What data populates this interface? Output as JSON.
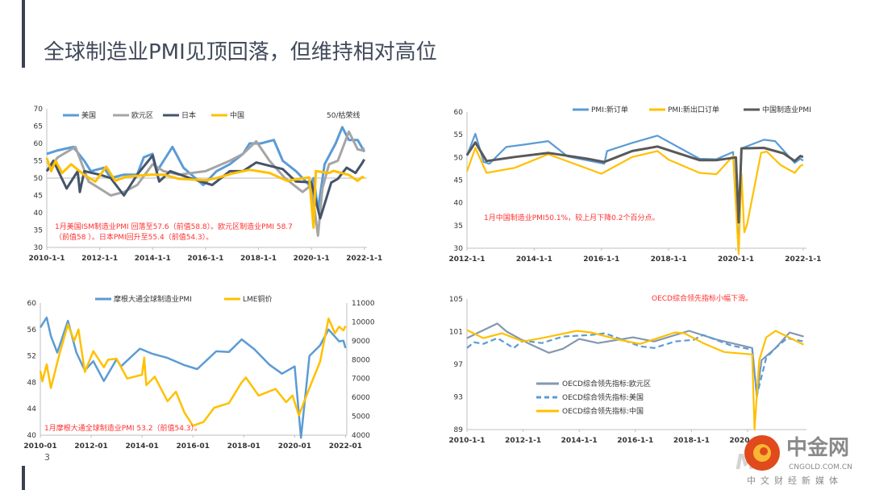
{
  "slide": {
    "title": "全球制造业PMI见顶回落，但维持相对高位",
    "page_number": "3",
    "accent_bar_color": "#3b4152"
  },
  "watermark": {
    "name": "中金网",
    "domain": "CNGOLD.COM.CN",
    "slogan": "中文财经新媒体"
  },
  "chart_data": [
    {
      "type": "line",
      "ylim": [
        30,
        70
      ],
      "yticks": [
        30,
        35,
        40,
        45,
        50,
        55,
        60,
        65,
        70
      ],
      "xticks": [
        "2010-1-1",
        "2012-1-1",
        "2014-1-1",
        "2016-1-1",
        "2018-1-1",
        "2020-1-1",
        "2022-1-1"
      ],
      "reference_line": {
        "value": 50,
        "label": "50/枯荣线"
      },
      "legend_position": "top",
      "annotation": [
        "1月美国ISM制造业PMI 回落至57.6（前值58.8）。欧元区制造业PMI 58.7",
        "（前值58 ）。日本PMI回升至55.4（前值54.3）。"
      ],
      "series": [
        {
          "name": "美国",
          "color": "#5b9bd5",
          "x": [
            "2010-01",
            "2010-06",
            "2011-01",
            "2011-06",
            "2011-09",
            "2012-03",
            "2012-06",
            "2012-12",
            "2013-06",
            "2013-09",
            "2014-01",
            "2014-03",
            "2014-06",
            "2014-10",
            "2015-03",
            "2015-12",
            "2016-06",
            "2016-12",
            "2017-06",
            "2017-09",
            "2018-02",
            "2018-08",
            "2018-12",
            "2019-06",
            "2019-12",
            "2020-02",
            "2020-04",
            "2020-07",
            "2020-12",
            "2021-03",
            "2021-06",
            "2021-10",
            "2021-12",
            "2022-01"
          ],
          "y": [
            57,
            58,
            59,
            55,
            52,
            53,
            50,
            51,
            51,
            56,
            57,
            52,
            55,
            59,
            53,
            48,
            52,
            54,
            57,
            60,
            60,
            61,
            55,
            52,
            48,
            50,
            41,
            54,
            60,
            64.7,
            61,
            61,
            58.8,
            57.6
          ]
        },
        {
          "name": "欧元区",
          "color": "#a5a5a5",
          "x": [
            "2010-01",
            "2010-06",
            "2011-02",
            "2011-08",
            "2012-06",
            "2012-12",
            "2013-06",
            "2014-01",
            "2014-06",
            "2015-01",
            "2016-01",
            "2016-12",
            "2017-06",
            "2017-12",
            "2018-06",
            "2019-01",
            "2019-09",
            "2020-01",
            "2020-04",
            "2020-06",
            "2020-09",
            "2021-01",
            "2021-06",
            "2021-10",
            "2021-12",
            "2022-01"
          ],
          "y": [
            52,
            56,
            59,
            49,
            45,
            46,
            48,
            54,
            52,
            51,
            52,
            55,
            57,
            60.6,
            55,
            50,
            46,
            48,
            33.4,
            47,
            54,
            55,
            63.4,
            58.3,
            58,
            58.7
          ]
        },
        {
          "name": "日本",
          "color": "#44546a",
          "x": [
            "2010-01",
            "2010-04",
            "2010-10",
            "2011-03",
            "2011-04",
            "2011-06",
            "2012-01",
            "2012-06",
            "2012-12",
            "2013-06",
            "2014-01",
            "2014-04",
            "2014-09",
            "2015-06",
            "2016-04",
            "2016-12",
            "2017-06",
            "2017-12",
            "2018-12",
            "2019-06",
            "2020-01",
            "2020-05",
            "2020-10",
            "2021-01",
            "2021-05",
            "2021-09",
            "2021-12",
            "2022-01"
          ],
          "y": [
            52,
            55,
            47,
            52,
            46,
            52,
            51,
            50,
            45,
            51,
            56.5,
            49,
            52,
            50,
            48,
            52,
            52,
            54.5,
            52.6,
            49,
            48.8,
            38.4,
            48.7,
            49.8,
            53,
            51.5,
            54.3,
            55.4
          ]
        },
        {
          "name": "中国",
          "color": "#ffc000",
          "x": [
            "2010-01",
            "2010-03",
            "2010-05",
            "2010-08",
            "2010-12",
            "2011-06",
            "2011-11",
            "2012-04",
            "2012-08",
            "2013-01",
            "2013-12",
            "2014-06",
            "2015-01",
            "2016-01",
            "2016-06",
            "2017-01",
            "2017-09",
            "2018-06",
            "2019-02",
            "2019-12",
            "2020-02",
            "2020-03",
            "2020-09",
            "2020-11",
            "2021-06",
            "2021-10",
            "2021-12",
            "2022-01"
          ],
          "y": [
            55.8,
            52,
            55,
            51.5,
            54,
            50.9,
            49,
            53.3,
            49.2,
            50.4,
            51,
            51,
            49.8,
            49.4,
            50,
            51.3,
            52.4,
            51.5,
            49.2,
            50.2,
            35.7,
            52,
            51.5,
            52.1,
            50.9,
            49.2,
            50.3,
            50.1
          ]
        }
      ]
    },
    {
      "type": "line",
      "ylim": [
        30,
        60
      ],
      "yticks": [
        30,
        35,
        40,
        45,
        50,
        55,
        60
      ],
      "xticks": [
        "2012-1-1",
        "2014-1-1",
        "2016-1-1",
        "2018-1-1",
        "2020-1-1",
        "2022-1-1"
      ],
      "legend_position": "top",
      "annotation": [
        "1月中国制造业PMI50.1%，较上月下降0.2个百分点。"
      ],
      "series": [
        {
          "name": "PMI:新订单",
          "color": "#5b9bd5",
          "x": [
            "2012-01",
            "2012-04",
            "2012-07",
            "2012-09",
            "2013-03",
            "2013-09",
            "2014-06",
            "2015-01",
            "2016-02",
            "2016-03",
            "2016-12",
            "2017-09",
            "2018-12",
            "2019-06",
            "2019-12",
            "2020-02",
            "2020-03",
            "2020-11",
            "2021-03",
            "2021-10",
            "2021-12",
            "2022-01"
          ],
          "y": [
            50.4,
            55.2,
            49,
            48.6,
            52.3,
            52.8,
            53.6,
            50.2,
            48.6,
            51.4,
            53.2,
            54.8,
            49.7,
            49.6,
            51.2,
            29.3,
            52,
            53.9,
            53.6,
            48.8,
            49.7,
            49.3
          ]
        },
        {
          "name": "PMI:新出口订单",
          "color": "#ffc000",
          "x": [
            "2012-01",
            "2012-04",
            "2012-08",
            "2013-06",
            "2014-06",
            "2015-06",
            "2016-01",
            "2016-12",
            "2017-09",
            "2018-01",
            "2018-12",
            "2019-06",
            "2019-12",
            "2020-02",
            "2020-03",
            "2020-04",
            "2020-05",
            "2020-10",
            "2020-12",
            "2021-05",
            "2021-10",
            "2021-12",
            "2022-01"
          ],
          "y": [
            46.9,
            52.1,
            46.6,
            47.7,
            50.7,
            48,
            46.4,
            50.1,
            51.4,
            49.5,
            46.6,
            46.3,
            50.3,
            28.7,
            46.4,
            33.5,
            35.3,
            51,
            51.3,
            48.3,
            46.6,
            48.1,
            48.4
          ]
        },
        {
          "name": "中国制造业PMI",
          "color": "#595959",
          "x": [
            "2012-01",
            "2012-04",
            "2012-08",
            "2013-06",
            "2014-06",
            "2015-08",
            "2016-02",
            "2016-12",
            "2017-09",
            "2018-12",
            "2019-06",
            "2020-01",
            "2020-02",
            "2020-03",
            "2020-11",
            "2021-06",
            "2021-10",
            "2021-12",
            "2022-01"
          ],
          "y": [
            50.5,
            53.3,
            49.2,
            50.1,
            51,
            49.7,
            49,
            51.4,
            52.4,
            49.4,
            49.4,
            50,
            35.7,
            52,
            52.1,
            50.9,
            49.2,
            50.3,
            50.1
          ]
        }
      ]
    },
    {
      "type": "line",
      "ylim": [
        40,
        60
      ],
      "yticks": [
        40,
        44,
        48,
        52,
        56,
        60
      ],
      "y2lim": [
        4000,
        11000
      ],
      "y2ticks": [
        4000,
        5000,
        6000,
        7000,
        8000,
        9000,
        10000,
        11000
      ],
      "xticks": [
        "2010-01",
        "2012-01",
        "2014-01",
        "2016-01",
        "2018-01",
        "2020-01",
        "2022-01"
      ],
      "legend_position": "top",
      "annotation": [
        "1月摩根大通全球制造业PMI 53.2（前值54.3）。"
      ],
      "series": [
        {
          "name": "摩根大通全球制造业PMI",
          "axis": "left",
          "color": "#5b9bd5",
          "x": [
            "2010-01",
            "2010-04",
            "2010-06",
            "2010-09",
            "2011-02",
            "2011-06",
            "2011-10",
            "2012-02",
            "2012-07",
            "2013-01",
            "2013-03",
            "2013-12",
            "2014-06",
            "2015-01",
            "2015-09",
            "2016-03",
            "2016-12",
            "2017-06",
            "2017-12",
            "2018-06",
            "2019-01",
            "2019-07",
            "2020-01",
            "2020-04",
            "2020-08",
            "2021-01",
            "2021-05",
            "2021-10",
            "2021-12",
            "2022-01"
          ],
          "y": [
            56.3,
            57.8,
            55,
            52.5,
            57.3,
            52.5,
            49.8,
            51.2,
            48.2,
            51.5,
            50.4,
            53.1,
            52.3,
            51.7,
            50.6,
            50,
            52.7,
            52.6,
            54.5,
            53,
            50.7,
            49.3,
            50.4,
            39.6,
            52,
            53.6,
            56,
            54.2,
            54.3,
            53.2
          ]
        },
        {
          "name": "LME铜价",
          "axis": "right",
          "color": "#ffc000",
          "x": [
            "2010-01",
            "2010-02",
            "2010-04",
            "2010-06",
            "2010-10",
            "2011-02",
            "2011-05",
            "2011-07",
            "2011-10",
            "2012-02",
            "2012-07",
            "2012-09",
            "2013-01",
            "2013-06",
            "2014-01",
            "2014-02",
            "2014-03",
            "2014-07",
            "2015-01",
            "2015-05",
            "2015-09",
            "2016-01",
            "2016-06",
            "2016-11",
            "2017-06",
            "2017-12",
            "2018-02",
            "2018-08",
            "2019-04",
            "2019-09",
            "2019-12",
            "2020-03",
            "2020-08",
            "2021-01",
            "2021-05",
            "2021-08",
            "2021-10",
            "2021-12",
            "2022-01"
          ],
          "y": [
            7400,
            6850,
            7750,
            6500,
            8300,
            9870,
            9000,
            9600,
            7350,
            8450,
            7600,
            8000,
            8050,
            7000,
            7200,
            8100,
            6650,
            7100,
            5800,
            6300,
            5200,
            4500,
            4700,
            5450,
            5700,
            6800,
            7050,
            6100,
            6450,
            5750,
            6100,
            5050,
            6500,
            7900,
            10180,
            9400,
            9750,
            9550,
            9780
          ]
        }
      ]
    },
    {
      "type": "line",
      "ylim": [
        89,
        105
      ],
      "yticks": [
        89,
        93,
        97,
        101,
        105
      ],
      "xticks": [
        "2010-1-1",
        "2012-1-1",
        "2014-1-1",
        "2016-1-1",
        "2018-1-1",
        "2020-1-1"
      ],
      "legend_position": "bottom-left",
      "annotation": [
        "OECD综合领先指标小幅下滑。"
      ],
      "series": [
        {
          "name": "OECD综合领先指标:欧元区",
          "color": "#8497b0",
          "dash": false,
          "x": [
            "2010-01",
            "2010-06",
            "2011-02",
            "2011-06",
            "2012-03",
            "2012-12",
            "2013-06",
            "2014-01",
            "2014-09",
            "2015-12",
            "2016-09",
            "2017-12",
            "2018-12",
            "2019-12",
            "2020-03",
            "2020-05",
            "2020-07",
            "2021-01",
            "2021-07",
            "2022-01"
          ],
          "y": [
            100.2,
            100.9,
            102,
            101,
            99.6,
            98.4,
            98.9,
            100.1,
            99.6,
            100.3,
            99.8,
            101.1,
            100,
            99.2,
            99,
            93,
            97.5,
            99,
            100.9,
            100.4
          ]
        },
        {
          "name": "OECD综合领先指标:美国",
          "color": "#5b9bd5",
          "dash": true,
          "x": [
            "2010-01",
            "2010-04",
            "2010-08",
            "2011-02",
            "2011-09",
            "2012-01",
            "2012-09",
            "2013-06",
            "2014-06",
            "2014-12",
            "2016-03",
            "2016-09",
            "2017-06",
            "2018-02",
            "2018-06",
            "2019-06",
            "2020-03",
            "2020-05",
            "2020-09",
            "2021-01",
            "2021-06",
            "2022-01"
          ],
          "y": [
            99,
            99.7,
            99.5,
            100.2,
            99,
            99.9,
            99.6,
            100.4,
            100.6,
            100.8,
            99.2,
            99,
            99.8,
            100,
            100.6,
            99.3,
            98.8,
            93.2,
            97.8,
            99,
            100.2,
            99.8
          ]
        },
        {
          "name": "OECD综合领先指标:中国",
          "color": "#ffc000",
          "dash": false,
          "x": [
            "2010-01",
            "2010-08",
            "2011-04",
            "2012-01",
            "2012-09",
            "2013-12",
            "2014-06",
            "2015-06",
            "2016-03",
            "2017-06",
            "2017-10",
            "2018-06",
            "2019-03",
            "2020-03",
            "2020-04",
            "2020-06",
            "2020-09",
            "2021-01",
            "2021-06",
            "2022-01"
          ],
          "y": [
            101.2,
            100.2,
            100.8,
            99.8,
            100.2,
            101.1,
            100.9,
            100,
            99.5,
            100.9,
            100.8,
            99.6,
            98.5,
            98.2,
            89,
            97.5,
            100.3,
            101.1,
            100.4,
            99.4
          ]
        }
      ]
    }
  ]
}
